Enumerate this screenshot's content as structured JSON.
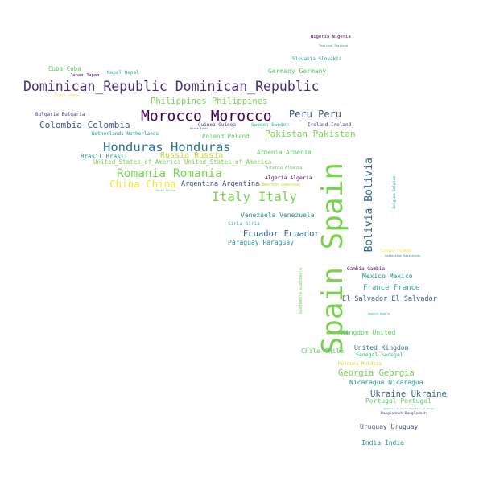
{
  "palette": {
    "c1": "#440154",
    "c2": "#3b528b",
    "c3": "#21918c",
    "c4": "#5ec962",
    "c5": "#fde725",
    "c6": "#31688e",
    "c7": "#35b779",
    "c8": "#472d7b"
  },
  "words": [
    {
      "id": "spain",
      "text": "Spain Spain",
      "color": "#7ad151"
    },
    {
      "id": "dominican-republic",
      "text": "Dominican_Republic Dominican_Republic",
      "color": "#472d7b"
    },
    {
      "id": "morocco",
      "text": "Morocco Morocco",
      "color": "#440154"
    },
    {
      "id": "honduras",
      "text": "Honduras Honduras",
      "color": "#2c728e"
    },
    {
      "id": "romania",
      "text": "Romania Romania",
      "color": "#7ad151"
    },
    {
      "id": "italy",
      "text": "Italy Italy",
      "color": "#7ad151"
    },
    {
      "id": "china",
      "text": "China China",
      "color": "#fde725"
    },
    {
      "id": "bolivia",
      "text": "Bolivia Bolivia",
      "color": "#31688e"
    },
    {
      "id": "philippines",
      "text": "Philippines Philippines",
      "color": "#7ad151"
    },
    {
      "id": "peru",
      "text": "Peru Peru",
      "color": "#3b528b"
    },
    {
      "id": "pakistan",
      "text": "Pakistan Pakistan",
      "color": "#7ad151"
    },
    {
      "id": "colombia",
      "text": "Colombia Colombia",
      "color": "#3b528b"
    },
    {
      "id": "russia",
      "text": "Russia Russia",
      "color": "#c2df23"
    },
    {
      "id": "ecuador",
      "text": "Ecuador Ecuador",
      "color": "#31688e"
    },
    {
      "id": "argentina",
      "text": "Argentina Argentina",
      "color": "#3e4989"
    },
    {
      "id": "georgia",
      "text": "Georgia Georgia",
      "color": "#7ad151"
    },
    {
      "id": "ukraine",
      "text": "Ukraine Ukraine",
      "color": "#31688e"
    },
    {
      "id": "united-kingdom-a",
      "text": "Kingdom United",
      "color": "#5ec962"
    },
    {
      "id": "united-kingdom-b",
      "text": "United Kingdom",
      "color": "#31688e"
    },
    {
      "id": "france",
      "text": "France France",
      "color": "#35b779"
    },
    {
      "id": "el-salvador",
      "text": "El_Salvador El_Salvador",
      "color": "#3b528b"
    },
    {
      "id": "usa",
      "text": "United_States_of_America United_States_of_America",
      "color": "#7ad151"
    },
    {
      "id": "venezuela",
      "text": "Venezuela Venezuela",
      "color": "#21918c"
    },
    {
      "id": "paraguay",
      "text": "Paraguay Paraguay",
      "color": "#21918c"
    },
    {
      "id": "mexico",
      "text": "Mexico Mexico",
      "color": "#21918c"
    },
    {
      "id": "chile",
      "text": "Chile Chile",
      "color": "#5ec962"
    },
    {
      "id": "nicaragua",
      "text": "Nicaragua Nicaragua",
      "color": "#21918c"
    },
    {
      "id": "portugal",
      "text": "Portugal Portugal",
      "color": "#5ec962"
    },
    {
      "id": "uruguay",
      "text": "Uruguay Uruguay",
      "color": "#3b528b"
    },
    {
      "id": "india",
      "text": "India India",
      "color": "#21918c"
    },
    {
      "id": "germany",
      "text": "Germany Germany",
      "color": "#5ec962"
    },
    {
      "id": "armenia",
      "text": "Armenia Armenia",
      "color": "#5ec962"
    },
    {
      "id": "poland",
      "text": "Poland Poland",
      "color": "#5ec962"
    },
    {
      "id": "brasil",
      "text": "Brasil Brasil",
      "color": "#21918c"
    },
    {
      "id": "cuba",
      "text": "Cuba Cuba",
      "color": "#5ec962"
    },
    {
      "id": "nepal",
      "text": "Nepal Nepal",
      "color": "#35b779"
    },
    {
      "id": "japan",
      "text": "Japan Japan",
      "color": "#440154"
    },
    {
      "id": "bulgaria",
      "text": "Bulgaria Bulgaria",
      "color": "#3e4989"
    },
    {
      "id": "netherlands",
      "text": "Netherlands Netherlands",
      "color": "#21918c"
    },
    {
      "id": "guinea",
      "text": "Guinea Guinea",
      "color": "#482878"
    },
    {
      "id": "sweden",
      "text": "Sweden Sweden",
      "color": "#35b779"
    },
    {
      "id": "ireland",
      "text": "Ireland Ireland",
      "color": "#443983"
    },
    {
      "id": "algeria",
      "text": "Algeria Algeria",
      "color": "#440154"
    },
    {
      "id": "albania",
      "text": "Albania Albania",
      "color": "#5ec962"
    },
    {
      "id": "cameroon",
      "text": "Cameroon Cameroon",
      "color": "#c2df23"
    },
    {
      "id": "syria",
      "text": "Siria Siria",
      "color": "#35b779"
    },
    {
      "id": "gambia",
      "text": "Gambia Gambia",
      "color": "#440154"
    },
    {
      "id": "senegal",
      "text": "Senegal Senegal",
      "color": "#35b779"
    },
    {
      "id": "moldova",
      "text": "Moldova Moldova",
      "color": "#c2df23"
    },
    {
      "id": "slovakia",
      "text": "Slovakia Slovakia",
      "color": "#21918c"
    },
    {
      "id": "nigeria",
      "text": "Nigeria Nigeria",
      "color": "#440154"
    },
    {
      "id": "thailand",
      "text": "Thailand Thailand",
      "color": "#21918c"
    },
    {
      "id": "turkey",
      "text": "Turkey Turkey",
      "color": "#fde725"
    },
    {
      "id": "kazakhstan",
      "text": "Kazakhstan Kazakhstan",
      "color": "#21918c"
    },
    {
      "id": "angola",
      "text": "Angola Angola",
      "color": "#35b779"
    },
    {
      "id": "bangladesh",
      "text": "Bangladesh Bangladesh",
      "color": "#3e4989"
    },
    {
      "id": "republic-korea",
      "text": "Republic_of_Korea Republic_of_Korea",
      "color": "#35b779"
    },
    {
      "id": "guatemala",
      "text": "Guatemala Guatemala",
      "color": "#7ad151"
    },
    {
      "id": "belgium",
      "text": "Belgium Belgium",
      "color": "#21918c"
    },
    {
      "id": "south-korea-a",
      "text": "Korea South",
      "color": "#31688e"
    },
    {
      "id": "south-africa-a",
      "text": "South Africa",
      "color": "#35b779"
    },
    {
      "id": "tiny-yellow",
      "text": "Lebanon Lebanon",
      "color": "#fde725"
    }
  ]
}
